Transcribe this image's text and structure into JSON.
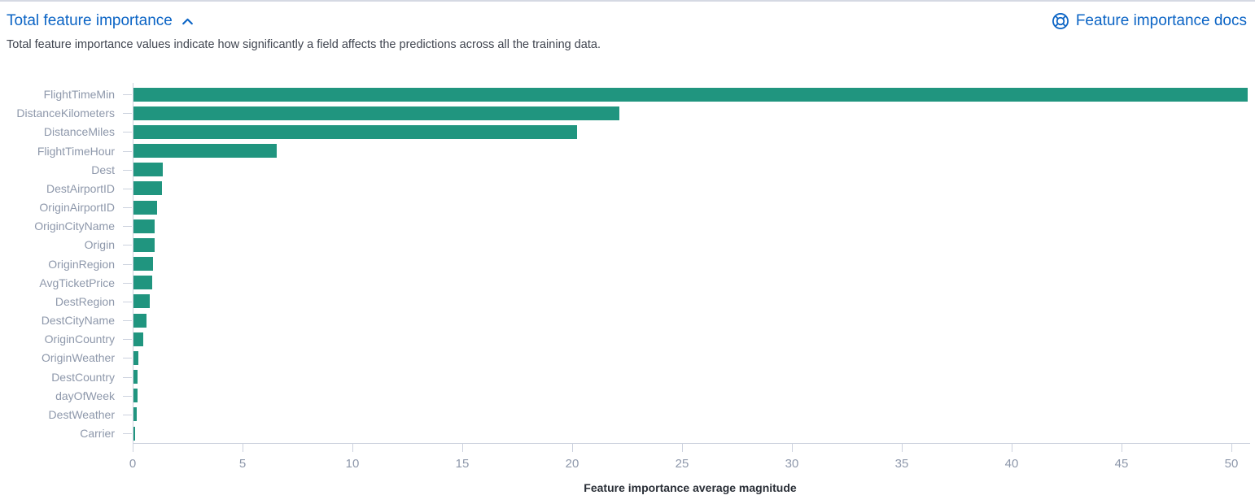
{
  "header": {
    "title": "Total feature importance",
    "collapse_icon": "chevron-up-icon",
    "docs_link_label": "Feature importance docs",
    "docs_icon": "help-icon"
  },
  "description": "Total feature importance values indicate how significantly a field affects the predictions across all the training data.",
  "colors": {
    "accent": "#0b64c5",
    "bar": "#20957f",
    "axis": "#ccd2de",
    "tick_text": "#8e98ab",
    "text": "#343741"
  },
  "chart_data": {
    "type": "bar",
    "orientation": "horizontal",
    "title": "",
    "xlabel": "Feature importance average magnitude",
    "ylabel": "",
    "categories": [
      "FlightTimeMin",
      "DistanceKilometers",
      "DistanceMiles",
      "FlightTimeHour",
      "Dest",
      "DestAirportID",
      "OriginAirportID",
      "OriginCityName",
      "Origin",
      "OriginRegion",
      "AvgTicketPrice",
      "DestRegion",
      "DestCityName",
      "OriginCountry",
      "OriginWeather",
      "DestCountry",
      "dayOfWeek",
      "DestWeather",
      "Carrier"
    ],
    "values": [
      50.7,
      22.1,
      20.2,
      6.5,
      1.33,
      1.3,
      1.07,
      0.97,
      0.95,
      0.88,
      0.84,
      0.73,
      0.6,
      0.44,
      0.22,
      0.19,
      0.18,
      0.15,
      0.07
    ],
    "xticks": [
      0,
      5,
      10,
      15,
      20,
      25,
      30,
      35,
      40,
      45,
      50
    ],
    "xlim": [
      0,
      50.7
    ],
    "grid": false,
    "legend": false
  }
}
